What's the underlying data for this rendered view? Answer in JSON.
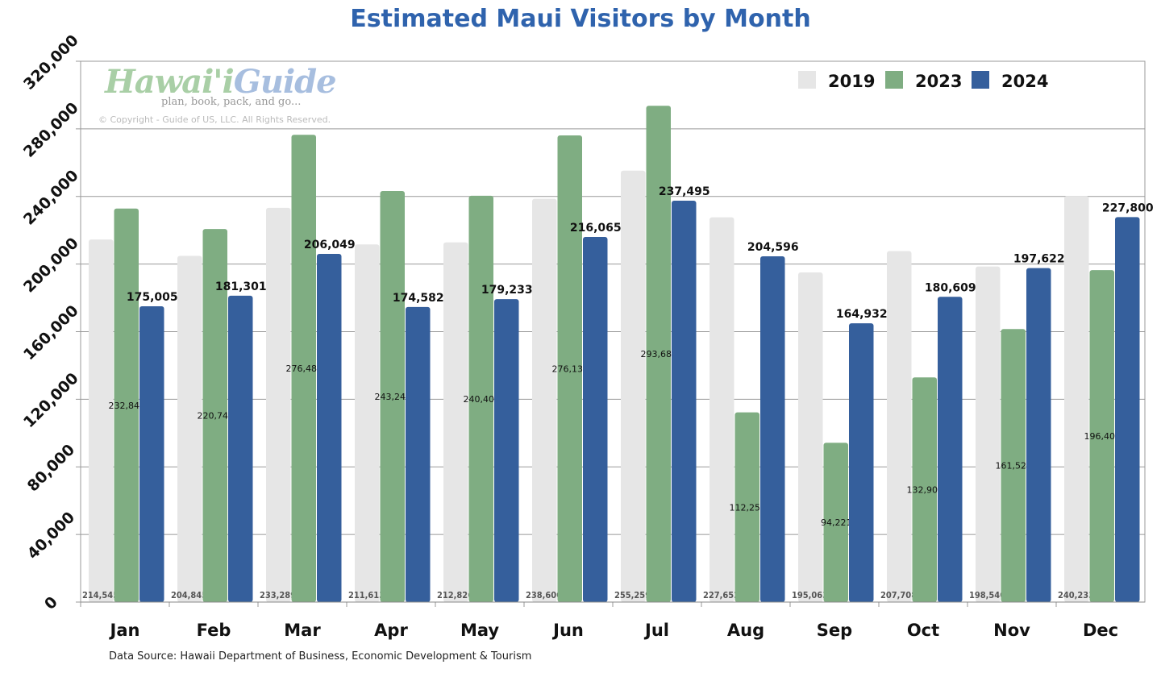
{
  "chart_data": {
    "type": "bar",
    "title": "Estimated Maui Visitors by Month",
    "categories": [
      "Jan",
      "Feb",
      "Mar",
      "Apr",
      "May",
      "Jun",
      "Jul",
      "Aug",
      "Sep",
      "Oct",
      "Nov",
      "Dec"
    ],
    "series": [
      {
        "name": "2019",
        "color": "#e6e6e6",
        "values": [
          214545,
          204845,
          233289,
          211613,
          212826,
          238600,
          255259,
          227652,
          195063,
          207708,
          198540,
          240233
        ]
      },
      {
        "name": "2023",
        "color": "#7fad82",
        "values": [
          232846,
          220741,
          276485,
          243245,
          240407,
          276136,
          293681,
          112259,
          94221,
          132909,
          161522,
          196402
        ]
      },
      {
        "name": "2024",
        "color": "#355f9c",
        "values": [
          175005,
          181301,
          206049,
          174582,
          179233,
          216065,
          237495,
          204596,
          164932,
          180609,
          197622,
          227800
        ]
      }
    ],
    "ylim": [
      0,
      320000
    ],
    "yticks": [
      "0",
      "40,000",
      "80,000",
      "120,000",
      "160,000",
      "200,000",
      "240,000",
      "280,000",
      "320,000"
    ],
    "grid": true,
    "legend_position": "top-right",
    "xlabel": "",
    "ylabel": ""
  },
  "source": "Data Source: Hawaii Department of Business, Economic Development & Tourism",
  "logo": {
    "name_part1": "Hawai'i",
    "name_part2": "Guide",
    "tagline": "plan, book, pack, and go...",
    "copyright": "© Copyright - Guide of US, LLC. All Rights Reserved."
  }
}
